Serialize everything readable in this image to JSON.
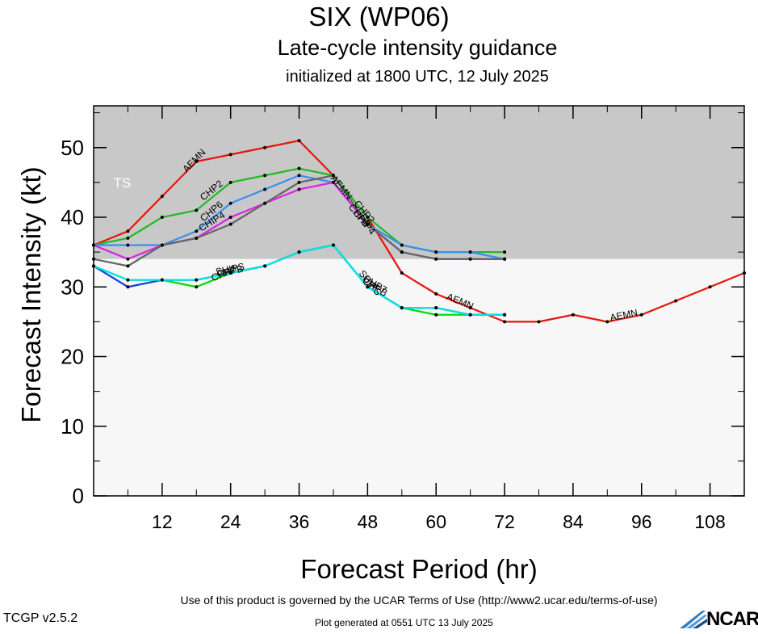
{
  "header": {
    "storm": "SIX (WP06)",
    "product": "Late-cycle intensity guidance",
    "initialized": "initialized at 1800 UTC, 12 July 2025"
  },
  "footer": {
    "terms": "Use of this product is governed by the UCAR Terms of Use (http://www2.ucar.edu/terms-of-use)",
    "version": "TCGP v2.5.2",
    "generated": "Plot generated at 0551 UTC   13 July 2025",
    "logo_text": "NCAR"
  },
  "chart_data": {
    "type": "line",
    "xlabel": "Forecast Period (hr)",
    "ylabel": "Forecast Intensity (kt)",
    "xlim": [
      0,
      114
    ],
    "ylim": [
      0,
      56
    ],
    "xticks": [
      12,
      24,
      36,
      48,
      60,
      72,
      84,
      96,
      108
    ],
    "yticks": [
      0,
      10,
      20,
      30,
      40,
      50
    ],
    "grid": false,
    "bands": [
      {
        "label": "TS",
        "from": 34,
        "to": 56,
        "color": "#c8c8c8"
      },
      {
        "label": "",
        "from": 0,
        "to": 34,
        "color": "#f7f7f7"
      }
    ],
    "series": [
      {
        "name": "AEMN",
        "color": "#e8150c",
        "x": [
          0,
          6,
          12,
          18,
          24,
          30,
          36,
          42,
          48,
          54,
          60,
          66,
          72,
          78,
          84,
          90,
          96,
          102,
          108,
          114
        ],
        "y": [
          36,
          38,
          43,
          48,
          49,
          50,
          51,
          46,
          40,
          32,
          29,
          27,
          25,
          25,
          26,
          25,
          26,
          28,
          30,
          32
        ],
        "labels": [
          {
            "x": 18,
            "y": 47.8
          },
          {
            "x": 43,
            "y": 44
          },
          {
            "x": 64,
            "y": 27.5
          },
          {
            "x": 93,
            "y": 25.5
          }
        ]
      },
      {
        "name": "CHP2",
        "color": "#22bb22",
        "x": [
          0,
          6,
          12,
          18,
          24,
          30,
          36,
          42,
          48,
          54,
          60,
          66,
          72
        ],
        "y": [
          36,
          37,
          40,
          41,
          45,
          46,
          47,
          46,
          40,
          36,
          35,
          35,
          35
        ],
        "labels": [
          {
            "x": 21,
            "y": 43.5
          },
          {
            "x": 47,
            "y": 40.5
          }
        ]
      },
      {
        "name": "CHP6",
        "color": "#3a8ef0",
        "x": [
          0,
          6,
          12,
          18,
          24,
          30,
          36,
          42,
          48,
          54,
          60,
          66,
          72
        ],
        "y": [
          36,
          36,
          36,
          38,
          42,
          44,
          46,
          45,
          39,
          36,
          35,
          35,
          34
        ],
        "labels": [
          {
            "x": 21,
            "y": 40.5
          },
          {
            "x": 46,
            "y": 40
          }
        ]
      },
      {
        "name": "CHIP4",
        "color": "#e020e8",
        "x": [
          0,
          6,
          12,
          18,
          24,
          30,
          36,
          42,
          48,
          54,
          60,
          66,
          72
        ],
        "y": [
          36,
          34,
          36,
          37,
          40,
          42,
          44,
          45,
          39,
          35,
          34,
          34,
          34
        ],
        "labels": [
          {
            "x": 21,
            "y": 39
          },
          {
            "x": 47,
            "y": 39
          }
        ]
      },
      {
        "name": "",
        "color": "#666666",
        "x": [
          0,
          6,
          12,
          18,
          24,
          30,
          36,
          42,
          48,
          54,
          60,
          66,
          72
        ],
        "y": [
          34,
          33,
          36,
          37,
          39,
          42,
          45,
          46,
          39,
          35,
          34,
          34,
          34
        ],
        "labels": []
      },
      {
        "name": "CHP7",
        "color": "#00dd00",
        "x": [
          0,
          6,
          12,
          18,
          24,
          30,
          36,
          42,
          48,
          54,
          60,
          66,
          72
        ],
        "y": [
          33,
          31,
          31,
          30,
          32,
          33,
          35,
          36,
          30,
          27,
          26,
          26,
          26
        ],
        "labels": [
          {
            "x": 23,
            "y": 31.5
          },
          {
            "x": 49,
            "y": 30
          }
        ]
      },
      {
        "name": "CHPB",
        "color": "#1f3fe0",
        "x": [
          0,
          6,
          12,
          18,
          24,
          30,
          36,
          42,
          48,
          54,
          60,
          66,
          72
        ],
        "y": [
          33,
          30,
          31,
          31,
          32,
          33,
          35,
          36,
          30,
          27,
          27,
          26,
          26
        ],
        "labels": [
          {
            "x": 24,
            "y": 31.8
          },
          {
            "x": 49,
            "y": 29.6
          }
        ]
      },
      {
        "name": "SHIPS",
        "color": "#00e6e6",
        "x": [
          0,
          6,
          12,
          18,
          24,
          30,
          36,
          42,
          48,
          54,
          60,
          66,
          72
        ],
        "y": [
          33,
          31,
          31,
          31,
          32,
          33,
          35,
          36,
          30,
          27,
          27,
          26,
          26
        ],
        "labels": [
          {
            "x": 24,
            "y": 32.1
          },
          {
            "x": 48,
            "y": 30.3
          }
        ]
      }
    ],
    "band_label": "TS"
  }
}
